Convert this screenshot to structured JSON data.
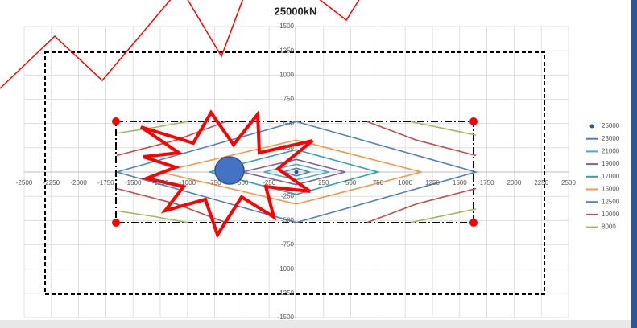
{
  "chart_data": {
    "type": "line",
    "title": "25000kN",
    "xlim": [
      -2500,
      2500
    ],
    "ylim": [
      -1500,
      1500
    ],
    "xticks": [
      -2500,
      -2250,
      -2000,
      -1750,
      -1500,
      -1250,
      -1000,
      -750,
      -500,
      -250,
      250,
      500,
      750,
      1000,
      1250,
      1500,
      1750,
      2000,
      2250,
      2500
    ],
    "yticks": [
      1500,
      1250,
      1000,
      750,
      500,
      250,
      -250,
      -500,
      -750,
      -1000,
      -1250,
      -1500
    ],
    "grid": true,
    "legend": "right",
    "series": [
      {
        "name": "25000",
        "color": "#2f5597",
        "x": [
          0
        ],
        "values": [
          0
        ]
      },
      {
        "name": "23000",
        "color": "#4a7ebb",
        "x": [
          -120,
          0,
          120,
          0,
          -120
        ],
        "values": [
          0,
          40,
          0,
          -40,
          0
        ]
      },
      {
        "name": "21000",
        "color": "#4bacc6",
        "x": [
          -300,
          0,
          300,
          0,
          -300
        ],
        "values": [
          0,
          80,
          0,
          -80,
          0
        ]
      },
      {
        "name": "19000",
        "color": "#7f5fa0",
        "x": [
          -500,
          0,
          450,
          0,
          -500
        ],
        "values": [
          0,
          130,
          0,
          -130,
          0
        ]
      },
      {
        "name": "17000",
        "color": "#31a0b0",
        "x": [
          -800,
          0,
          750,
          0,
          -800
        ],
        "values": [
          0,
          230,
          0,
          -230,
          0
        ]
      },
      {
        "name": "15000",
        "color": "#f79646",
        "x": [
          -1250,
          0,
          1150,
          0,
          -1250
        ],
        "values": [
          0,
          330,
          0,
          -330,
          0
        ]
      },
      {
        "name": "12500",
        "color": "#4f81bd",
        "x": [
          -1650,
          0,
          1650,
          0,
          -1650
        ],
        "values": [
          0,
          520,
          0,
          -520,
          0
        ]
      },
      {
        "name": "10000",
        "color": "#c0504d",
        "x": [
          -1650,
          -1100,
          -650,
          null,
          650,
          1100,
          1650,
          null,
          1650,
          1100,
          650,
          null,
          -650,
          -1100,
          -1650
        ],
        "values": [
          170,
          330,
          520,
          null,
          520,
          330,
          170,
          null,
          -170,
          -330,
          -520,
          null,
          -520,
          -330,
          -170
        ]
      },
      {
        "name": "8000",
        "color": "#9bbb59",
        "x": [
          -1650,
          -1300,
          -1000,
          null,
          1050,
          1350,
          1650,
          null,
          1650,
          1350,
          1050,
          null,
          -1000,
          -1300,
          -1650
        ],
        "values": [
          400,
          460,
          520,
          null,
          520,
          450,
          380,
          null,
          -380,
          -450,
          -520,
          null,
          -520,
          -460,
          -400
        ]
      }
    ]
  }
}
